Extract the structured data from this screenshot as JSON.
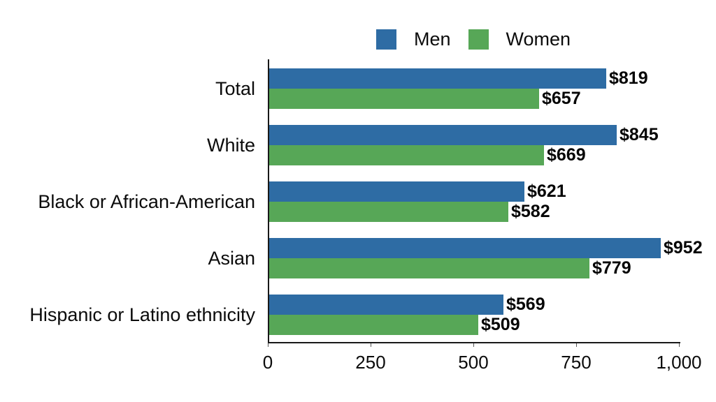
{
  "chart_data": {
    "type": "bar",
    "orientation": "horizontal",
    "title": "",
    "categories": [
      "Total",
      "White",
      "Black or African-American",
      "Asian",
      "Hispanic or Latino ethnicity"
    ],
    "series": [
      {
        "name": "Men",
        "color": "#2E6CA4",
        "values": [
          819,
          845,
          621,
          952,
          569
        ],
        "labels": [
          "$819",
          "$845",
          "$621",
          "$952",
          "$569"
        ]
      },
      {
        "name": "Women",
        "color": "#57A757",
        "values": [
          657,
          669,
          582,
          779,
          509
        ],
        "labels": [
          "$657",
          "$669",
          "$582",
          "$779",
          "$509"
        ]
      }
    ],
    "xlim": [
      0,
      1000
    ],
    "x_ticks": [
      {
        "value": 0,
        "label": "0"
      },
      {
        "value": 250,
        "label": "250"
      },
      {
        "value": 500,
        "label": "500"
      },
      {
        "value": 750,
        "label": "750"
      },
      {
        "value": 1000,
        "label": "1,000"
      }
    ],
    "legend_position": "top",
    "grid": false,
    "value_label_format": "$"
  }
}
